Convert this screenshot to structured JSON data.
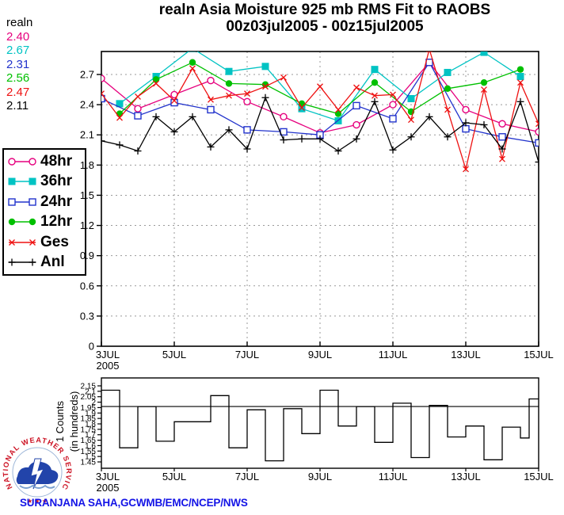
{
  "header": {
    "title": "realn Asia Moisture 925 mb RMS Fit to RAOBS",
    "subtitle": "00z03jul2005 - 00z15jul2005"
  },
  "stats_column": {
    "label": "realn",
    "values": [
      {
        "text": "2.40",
        "color": "#e6007e"
      },
      {
        "text": "2.67",
        "color": "#00c3c3"
      },
      {
        "text": "2.31",
        "color": "#2233cc"
      },
      {
        "text": "2.56",
        "color": "#00c000"
      },
      {
        "text": "2.47",
        "color": "#ee1111"
      },
      {
        "text": "2.11",
        "color": "#000000"
      }
    ]
  },
  "chart_data": [
    {
      "type": "line",
      "title": "realn Asia Moisture 925 mb RMS Fit to RAOBS",
      "subtitle": "00z03jul2005 - 00z15jul2005",
      "n_points": 25,
      "x_hours_step": 12,
      "x_tick_idx": [
        0,
        4,
        8,
        12,
        16,
        20,
        24
      ],
      "x_tick_labels": [
        "3JUL",
        "5JUL",
        "7JUL",
        "9JUL",
        "11JUL",
        "13JUL",
        "15JUL"
      ],
      "x_first_sublabel": "2005",
      "ylim": [
        0,
        2.93
      ],
      "y_tick_values": [
        2.7,
        2.4,
        2.1,
        1.8,
        1.5,
        1.2,
        0.9,
        0.6,
        0.3,
        0
      ],
      "y_tick_labels": [
        "2.7",
        "2.4",
        "2.1",
        "1.8",
        "1.5",
        "1.2",
        "0.9",
        "0.6",
        "0.3",
        "0"
      ],
      "grid": "dashed",
      "legend_position": "left-outside-box",
      "series": [
        {
          "name": "48hr",
          "mean": "2.40",
          "color": "#e6007e",
          "marker": "circle-open",
          "values": [
            2.66,
            null,
            2.36,
            null,
            2.5,
            null,
            2.64,
            null,
            2.43,
            null,
            2.28,
            null,
            2.12,
            null,
            2.2,
            null,
            2.4,
            null,
            2.82,
            null,
            2.35,
            null,
            2.21,
            null,
            2.13
          ]
        },
        {
          "name": "36hr",
          "mean": "2.67",
          "color": "#00c3c3",
          "marker": "square-filled",
          "values": [
            null,
            2.41,
            null,
            2.68,
            null,
            2.96,
            null,
            2.73,
            null,
            2.78,
            null,
            2.36,
            null,
            2.24,
            null,
            2.75,
            null,
            2.46,
            null,
            2.72,
            null,
            2.92,
            null,
            2.68,
            null
          ]
        },
        {
          "name": "24hr",
          "mean": "2.31",
          "color": "#2233cc",
          "marker": "square-open",
          "values": [
            2.46,
            null,
            2.29,
            null,
            2.42,
            null,
            2.35,
            null,
            2.15,
            null,
            2.13,
            null,
            2.1,
            null,
            2.39,
            null,
            2.26,
            null,
            2.82,
            null,
            2.16,
            null,
            2.08,
            null,
            2.02
          ]
        },
        {
          "name": "12hr",
          "mean": "2.56",
          "color": "#00c000",
          "marker": "circle-filled",
          "values": [
            null,
            2.31,
            null,
            2.65,
            null,
            2.82,
            null,
            2.61,
            null,
            2.6,
            null,
            2.41,
            null,
            2.31,
            null,
            2.62,
            null,
            2.33,
            null,
            2.56,
            null,
            2.62,
            null,
            2.75,
            null
          ]
        },
        {
          "name": "Ges",
          "mean": "2.47",
          "color": "#ee1111",
          "marker": "x",
          "values": [
            2.51,
            2.27,
            2.48,
            2.61,
            2.44,
            2.76,
            2.45,
            2.49,
            2.51,
            2.58,
            2.67,
            2.37,
            2.58,
            2.35,
            2.57,
            2.49,
            2.5,
            2.25,
            2.95,
            2.35,
            1.76,
            2.55,
            1.86,
            2.62,
            2.21
          ]
        },
        {
          "name": "Anl",
          "mean": "2.11",
          "color": "#000000",
          "marker": "plus",
          "values": [
            2.04,
            2.0,
            1.94,
            2.28,
            2.13,
            2.28,
            1.98,
            2.15,
            1.96,
            2.47,
            2.05,
            2.06,
            2.06,
            1.94,
            2.06,
            2.43,
            1.95,
            2.08,
            2.28,
            2.08,
            2.22,
            2.2,
            1.96,
            2.43,
            1.83
          ]
        }
      ]
    },
    {
      "type": "bar",
      "subtype": "outline-steps",
      "ylabel_lines": [
        "1 Counts",
        "(in hundreds)"
      ],
      "x_tick_idx": [
        0,
        4,
        8,
        12,
        16,
        20,
        24
      ],
      "x_tick_labels": [
        "3JUL",
        "5JUL",
        "7JUL",
        "9JUL",
        "11JUL",
        "13JUL",
        "15JUL"
      ],
      "x_first_sublabel": "2005",
      "ylim": [
        1.4,
        2.22
      ],
      "y_tick_values": [
        2.15,
        2.1,
        2.05,
        2.0,
        1.95,
        1.9,
        1.85,
        1.8,
        1.75,
        1.7,
        1.65,
        1.6,
        1.55,
        1.5,
        1.45
      ],
      "y_tick_labels": [
        "2.15",
        "2.1",
        "2.05",
        "2",
        "1.95",
        "1.9",
        "1.85",
        "1.8",
        "1.75",
        "1.7",
        "1.65",
        "1.6",
        "1.55",
        "1.5",
        "1.45"
      ],
      "reference_line": 1.96,
      "bar_hours": 12,
      "values": [
        2.11,
        1.58,
        1.96,
        1.64,
        1.82,
        1.82,
        2.06,
        1.58,
        1.93,
        1.46,
        1.94,
        1.71,
        2.11,
        1.78,
        1.96,
        1.63,
        1.99,
        1.49,
        1.97,
        1.68,
        1.78,
        1.47,
        1.77,
        1.67,
        2.03
      ]
    }
  ],
  "footer": {
    "credit": "SURANJANA SAHA,GCWMB/EMC/NCEP/NWS",
    "logo_text": "NATIONAL WEATHER SERVICE",
    "logo_stars": "★ ★ ★"
  }
}
